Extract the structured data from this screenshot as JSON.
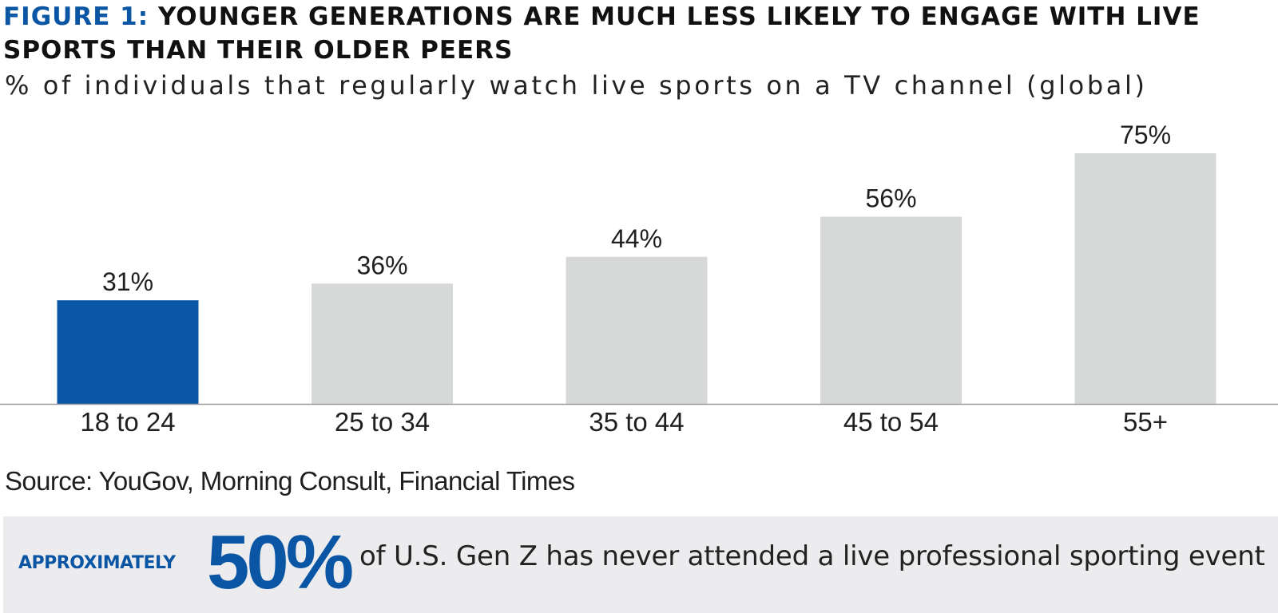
{
  "header": {
    "figure_label": "FIGURE 1:",
    "title": "YOUNGER GENERATIONS ARE MUCH LESS LIKELY TO ENGAGE WITH LIVE SPORTS THAN THEIR OLDER PEERS",
    "subtitle": "% of individuals that regularly watch live sports on a TV channel (global)"
  },
  "chart_data": {
    "type": "bar",
    "title": "YOUNGER GENERATIONS ARE MUCH LESS LIKELY TO ENGAGE WITH LIVE SPORTS THAN THEIR OLDER PEERS",
    "subtitle": "% of individuals that regularly watch live sports on a TV channel (global)",
    "categories": [
      "18 to 24",
      "25 to 34",
      "35 to 44",
      "45 to 54",
      "55+"
    ],
    "values": [
      31,
      36,
      44,
      56,
      75
    ],
    "data_labels": [
      "31%",
      "36%",
      "44%",
      "56%",
      "75%"
    ],
    "xlabel": "",
    "ylabel": "",
    "ylim": [
      0,
      75
    ],
    "grid": false,
    "legend": "none",
    "colors": {
      "highlight": "#0b56a4",
      "default": "#d7d8d8",
      "axis": "#9a9a9a"
    },
    "highlight_index": 0
  },
  "source": {
    "text": "Source: YouGov, Morning Consult, Financial Times"
  },
  "callout": {
    "prefix": "APPROXIMATELY",
    "value": "50%",
    "text": "of U.S. Gen Z has never attended a live professional sporting event"
  }
}
